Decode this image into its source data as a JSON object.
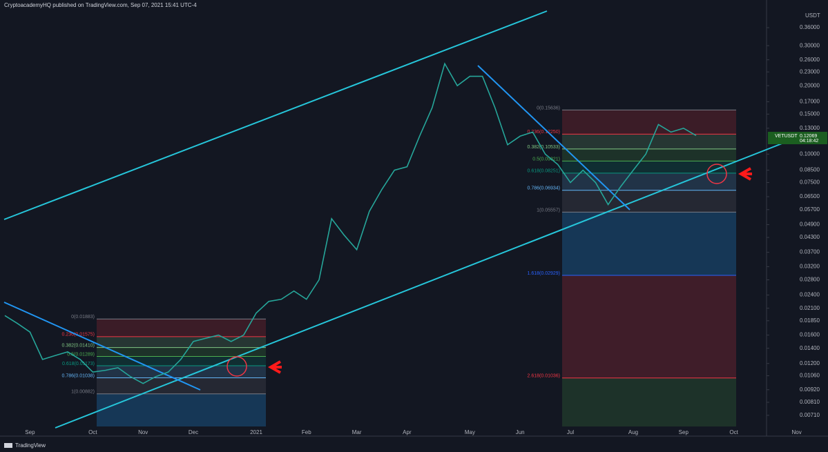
{
  "header": "CryptoacademyHQ published on TradingView.com, Sep 07, 2021 15:41 UTC-4",
  "footer": "TradingView",
  "chart_data": {
    "type": "line",
    "symbol": "VETUSDT",
    "price_label": "0.12069",
    "countdown": "04:18:42",
    "y_unit": "USDT",
    "color": "#26a69a",
    "log_scale": true,
    "categories": [
      null,
      null,
      "Sep",
      null,
      null,
      null,
      null,
      "Oct",
      null,
      null,
      null,
      "Nov",
      null,
      null,
      null,
      "Dec",
      null,
      null,
      null,
      null,
      "2021",
      null,
      null,
      null,
      "Feb",
      null,
      null,
      null,
      "Mar",
      null,
      null,
      null,
      "Apr",
      null,
      null,
      null,
      null,
      "May",
      null,
      null,
      null,
      "Jun",
      null,
      null,
      null,
      "Jul",
      null,
      null,
      null,
      null,
      "Aug",
      null,
      null,
      null,
      "Sep",
      null,
      null,
      null,
      "Oct",
      null,
      null,
      null,
      null,
      "Nov"
    ],
    "values": [
      0.0195,
      0.018,
      0.0165,
      0.0125,
      0.013,
      0.0135,
      0.0125,
      0.011,
      0.0112,
      0.0115,
      0.0105,
      0.0098,
      0.0105,
      0.011,
      0.0125,
      0.015,
      0.0155,
      0.016,
      0.015,
      0.016,
      0.02,
      0.0225,
      0.023,
      0.025,
      0.023,
      0.028,
      0.052,
      0.044,
      0.038,
      0.056,
      0.07,
      0.085,
      0.088,
      0.12,
      0.16,
      0.25,
      0.2,
      0.22,
      0.22,
      0.16,
      0.11,
      0.12,
      0.125,
      0.1,
      0.09,
      0.075,
      0.085,
      0.075,
      0.06,
      0.072,
      0.085,
      0.1,
      0.135,
      0.125,
      0.13,
      0.12069,
      null,
      null,
      null,
      null,
      null,
      null,
      null,
      null
    ],
    "ylim": [
      0.00575,
      0.432
    ],
    "yticks": [
      {
        "value": 0.36,
        "label": "0.36000"
      },
      {
        "value": 0.3,
        "label": "0.30000"
      },
      {
        "value": 0.26,
        "label": "0.26000"
      },
      {
        "value": 0.23,
        "label": "0.23000"
      },
      {
        "value": 0.2,
        "label": "0.20000"
      },
      {
        "value": 0.17,
        "label": "0.17000"
      },
      {
        "value": 0.15,
        "label": "0.15000"
      },
      {
        "value": 0.13,
        "label": "0.13000"
      },
      {
        "value": 0.1,
        "label": "0.10000"
      },
      {
        "value": 0.085,
        "label": "0.08500"
      },
      {
        "value": 0.075,
        "label": "0.07500"
      },
      {
        "value": 0.065,
        "label": "0.06500"
      },
      {
        "value": 0.057,
        "label": "0.05700"
      },
      {
        "value": 0.049,
        "label": "0.04900"
      },
      {
        "value": 0.043,
        "label": "0.04300"
      },
      {
        "value": 0.037,
        "label": "0.03700"
      },
      {
        "value": 0.032,
        "label": "0.03200"
      },
      {
        "value": 0.028,
        "label": "0.02800"
      },
      {
        "value": 0.024,
        "label": "0.02400"
      },
      {
        "value": 0.021,
        "label": "0.02100"
      },
      {
        "value": 0.0185,
        "label": "0.01850"
      },
      {
        "value": 0.016,
        "label": "0.01600"
      },
      {
        "value": 0.014,
        "label": "0.01400"
      },
      {
        "value": 0.012,
        "label": "0.01200"
      },
      {
        "value": 0.0106,
        "label": "0.01060"
      },
      {
        "value": 0.0092,
        "label": "0.00920"
      },
      {
        "value": 0.0081,
        "label": "0.00810"
      },
      {
        "value": 0.0071,
        "label": "0.00710"
      }
    ],
    "fib_left": [
      {
        "label": "0(0.01883)",
        "value": 0.01883,
        "color": "#787b86",
        "band": "rgba(242,54,69,0.18)"
      },
      {
        "label": "0.236(0.01575)",
        "value": 0.01575,
        "color": "#f23645",
        "band": "rgba(129,199,132,0.18)"
      },
      {
        "label": "0.382(0.01410)",
        "value": 0.0141,
        "color": "#81c784",
        "band": "rgba(76,175,80,0.18)"
      },
      {
        "label": "0.5(0.01289)",
        "value": 0.01289,
        "color": "#4caf50",
        "band": "rgba(8,153,129,0.18)"
      },
      {
        "label": "0.618(0.01173)",
        "value": 0.01173,
        "color": "#089981",
        "band": "rgba(100,181,246,0.18)"
      },
      {
        "label": "0.786(0.01038)",
        "value": 0.01038,
        "color": "#64b5f6",
        "band": "rgba(120,123,134,0.18)"
      },
      {
        "label": "1(0.00882)",
        "value": 0.00882,
        "color": "#787b86",
        "band": "rgba(33,150,243,0.25)"
      }
    ],
    "fib_right": [
      {
        "label": "0(0.15636)",
        "value": 0.15636,
        "color": "#787b86",
        "band": "rgba(242,54,69,0.18)"
      },
      {
        "label": "0.236(0.12250)",
        "value": 0.1225,
        "color": "#f23645",
        "band": "rgba(129,199,132,0.18)"
      },
      {
        "label": "0.382(0.10533)",
        "value": 0.10533,
        "color": "#81c784",
        "band": "rgba(76,175,80,0.18)"
      },
      {
        "label": "0.5(0.09321)",
        "value": 0.09321,
        "color": "#4caf50",
        "band": "rgba(8,153,129,0.18)"
      },
      {
        "label": "0.618(0.08251)",
        "value": 0.08251,
        "color": "#089981",
        "band": "rgba(100,181,246,0.18)"
      },
      {
        "label": "0.786(0.06934)",
        "value": 0.06934,
        "color": "#64b5f6",
        "band": "rgba(120,123,134,0.18)"
      },
      {
        "label": "1(0.05557)",
        "value": 0.05557,
        "color": "#787b86",
        "band": "rgba(33,150,243,0.25)"
      },
      {
        "label": "1.618(0.02929)",
        "value": 0.02929,
        "color": "#2962ff",
        "band": "rgba(242,54,69,0.2)"
      },
      {
        "label": "2.618(0.01036)",
        "value": 0.01036,
        "color": "#f23645",
        "band": "rgba(76,175,80,0.18)"
      }
    ]
  }
}
